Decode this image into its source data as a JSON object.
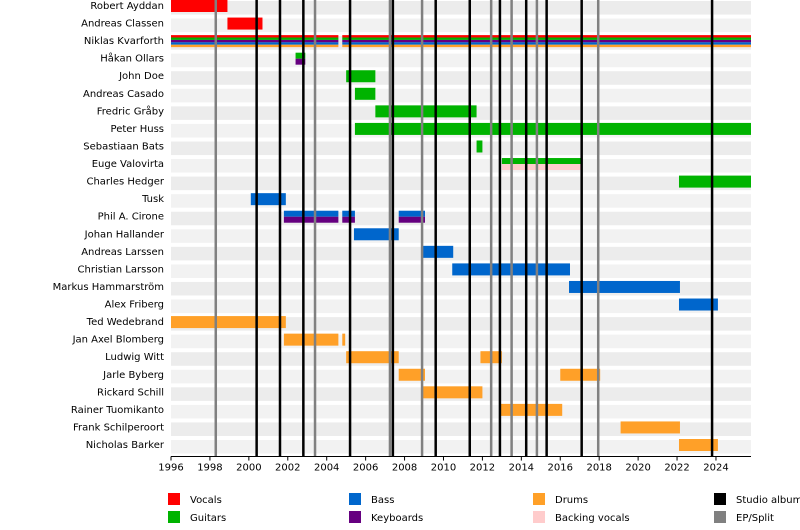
{
  "chart_data": {
    "type": "timeline",
    "xlim": [
      1996,
      2025.8
    ],
    "xticks": [
      1996,
      1998,
      2000,
      2002,
      2004,
      2006,
      2008,
      2010,
      2012,
      2014,
      2016,
      2018,
      2020,
      2022,
      2024
    ],
    "roles": [
      {
        "name": "Vocals",
        "color": "#ff0000"
      },
      {
        "name": "Guitars",
        "color": "#00b300"
      },
      {
        "name": "Bass",
        "color": "#0066cc"
      },
      {
        "name": "Keyboards",
        "color": "#660080"
      },
      {
        "name": "Drums",
        "color": "#ffa028"
      },
      {
        "name": "Backing vocals",
        "color": "#ffcccc"
      }
    ],
    "releases": [
      {
        "name": "Studio album",
        "color": "#000000",
        "years": [
          2000.4,
          2001.6,
          2002.8,
          2005.2,
          2007.4,
          2009.6,
          2011.35,
          2012.9,
          2014.25,
          2015.3,
          2017.1,
          2023.8
        ]
      },
      {
        "name": "EP/Split",
        "color": "#808080",
        "years": [
          1998.3,
          2003.4,
          2007.25,
          2008.9,
          2012.45,
          2013.5,
          2014.8,
          2017.95
        ]
      }
    ],
    "members": [
      {
        "name": "Robert Ayddan",
        "periods": [
          {
            "roles": [
              "Vocals"
            ],
            "start": 1996,
            "end": 1998.9
          }
        ]
      },
      {
        "name": "Andreas Classen",
        "periods": [
          {
            "roles": [
              "Vocals"
            ],
            "start": 1998.9,
            "end": 2000.7
          }
        ]
      },
      {
        "name": "Niklas Kvarforth",
        "periods": [
          {
            "roles": [
              "Vocals",
              "Guitars",
              "Keyboards",
              "Bass",
              "Drums"
            ],
            "start": 1996,
            "end": 2004.6
          },
          {
            "roles": [
              "Vocals",
              "Guitars",
              "Keyboards",
              "Bass",
              "Drums"
            ],
            "start": 2004.8,
            "end": 2025.8
          }
        ]
      },
      {
        "name": "Håkan Ollars",
        "periods": [
          {
            "roles": [
              "Guitars",
              "Keyboards"
            ],
            "start": 2002.4,
            "end": 2002.9
          }
        ]
      },
      {
        "name": "John Doe",
        "periods": [
          {
            "roles": [
              "Guitars"
            ],
            "start": 2005.0,
            "end": 2006.5
          }
        ]
      },
      {
        "name": "Andreas Casado",
        "periods": [
          {
            "roles": [
              "Guitars"
            ],
            "start": 2005.45,
            "end": 2006.5
          }
        ]
      },
      {
        "name": "Fredric Gråby",
        "periods": [
          {
            "roles": [
              "Guitars"
            ],
            "start": 2006.5,
            "end": 2011.7
          }
        ]
      },
      {
        "name": "Peter Huss",
        "periods": [
          {
            "roles": [
              "Guitars"
            ],
            "start": 2005.45,
            "end": 2025.8
          }
        ]
      },
      {
        "name": "Sebastiaan Bats",
        "periods": [
          {
            "roles": [
              "Guitars"
            ],
            "start": 2011.7,
            "end": 2012.0
          }
        ]
      },
      {
        "name": "Euge Valovirta",
        "periods": [
          {
            "roles": [
              "Guitars",
              "Backing vocals"
            ],
            "start": 2013.0,
            "end": 2017.1
          }
        ]
      },
      {
        "name": "Charles Hedger",
        "periods": [
          {
            "roles": [
              "Guitars"
            ],
            "start": 2022.1,
            "end": 2025.8
          }
        ]
      },
      {
        "name": "Tusk",
        "periods": [
          {
            "roles": [
              "Bass"
            ],
            "start": 2000.1,
            "end": 2001.9
          }
        ]
      },
      {
        "name": "Phil A. Cirone",
        "periods": [
          {
            "roles": [
              "Bass",
              "Keyboards"
            ],
            "start": 2001.8,
            "end": 2004.6
          },
          {
            "roles": [
              "Bass",
              "Keyboards"
            ],
            "start": 2004.8,
            "end": 2005.45
          },
          {
            "roles": [
              "Bass",
              "Keyboards"
            ],
            "start": 2007.7,
            "end": 2009.05
          }
        ]
      },
      {
        "name": "Johan Hallander",
        "periods": [
          {
            "roles": [
              "Bass"
            ],
            "start": 2005.4,
            "end": 2007.7
          }
        ]
      },
      {
        "name": "Andreas Larssen",
        "periods": [
          {
            "roles": [
              "Bass"
            ],
            "start": 2008.95,
            "end": 2010.5
          }
        ]
      },
      {
        "name": "Christian Larsson",
        "periods": [
          {
            "roles": [
              "Bass"
            ],
            "start": 2010.45,
            "end": 2016.5
          }
        ]
      },
      {
        "name": "Markus Hammarström",
        "periods": [
          {
            "roles": [
              "Bass"
            ],
            "start": 2016.45,
            "end": 2022.15
          }
        ]
      },
      {
        "name": "Alex Friberg",
        "periods": [
          {
            "roles": [
              "Bass"
            ],
            "start": 2022.1,
            "end": 2024.1
          }
        ]
      },
      {
        "name": "Ted Wedebrand",
        "periods": [
          {
            "roles": [
              "Drums"
            ],
            "start": 1996,
            "end": 2001.9
          }
        ]
      },
      {
        "name": "Jan Axel Blomberg",
        "periods": [
          {
            "roles": [
              "Drums"
            ],
            "start": 2001.8,
            "end": 2004.6
          },
          {
            "roles": [
              "Drums"
            ],
            "start": 2004.8,
            "end": 2004.95
          }
        ]
      },
      {
        "name": "Ludwig Witt",
        "periods": [
          {
            "roles": [
              "Drums"
            ],
            "start": 2005.0,
            "end": 2007.7
          },
          {
            "roles": [
              "Drums"
            ],
            "start": 2011.9,
            "end": 2013.0
          }
        ]
      },
      {
        "name": "Jarle Byberg",
        "periods": [
          {
            "roles": [
              "Drums"
            ],
            "start": 2007.7,
            "end": 2009.05
          },
          {
            "roles": [
              "Drums"
            ],
            "start": 2016.0,
            "end": 2018.05
          }
        ]
      },
      {
        "name": "Rickard Schill",
        "periods": [
          {
            "roles": [
              "Drums"
            ],
            "start": 2008.95,
            "end": 2012.0
          }
        ]
      },
      {
        "name": "Rainer Tuomikanto",
        "periods": [
          {
            "roles": [
              "Drums"
            ],
            "start": 2012.95,
            "end": 2016.1
          }
        ]
      },
      {
        "name": "Frank Schilperoort",
        "periods": [
          {
            "roles": [
              "Drums"
            ],
            "start": 2019.1,
            "end": 2022.15
          }
        ]
      },
      {
        "name": "Nicholas Barker",
        "periods": [
          {
            "roles": [
              "Drums"
            ],
            "start": 2022.1,
            "end": 2024.1
          }
        ]
      }
    ]
  }
}
